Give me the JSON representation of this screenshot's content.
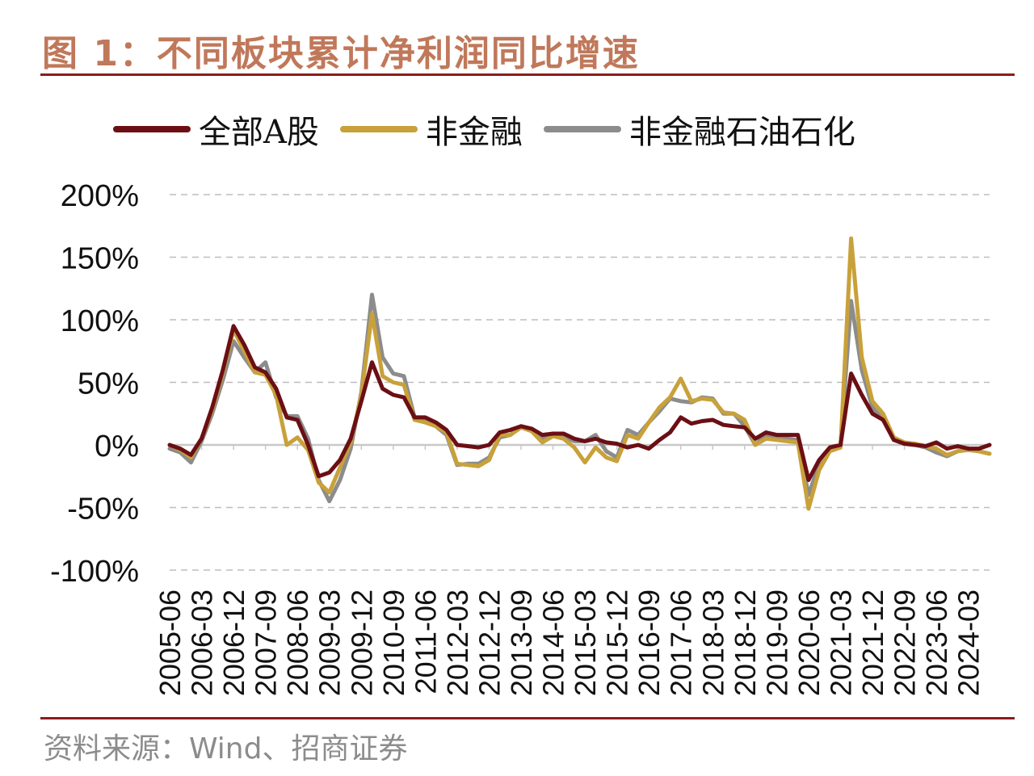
{
  "page": {
    "title": "图 1：不同板块累计净利润同比增速",
    "source": "资料来源：Wind、招商证券"
  },
  "chart_data": {
    "type": "line",
    "title": "图 1：不同板块累计净利润同比增速",
    "xlabel": "",
    "ylabel": "",
    "ylim": [
      -100,
      200
    ],
    "y_ticks": [
      "200%",
      "150%",
      "100%",
      "50%",
      "0%",
      "-50%",
      "-100%"
    ],
    "y_tick_values": [
      200,
      150,
      100,
      50,
      0,
      -50,
      -100
    ],
    "x_range": [
      "2005-06",
      "2024-09"
    ],
    "x_tick_labels": [
      "2005-06",
      "2006-03",
      "2006-12",
      "2007-09",
      "2008-06",
      "2009-03",
      "2009-12",
      "2010-09",
      "2011-06",
      "2012-03",
      "2012-12",
      "2013-09",
      "2014-06",
      "2015-03",
      "2015-12",
      "2016-09",
      "2017-06",
      "2018-03",
      "2018-12",
      "2019-09",
      "2020-06",
      "2021-03",
      "2021-12",
      "2022-09",
      "2023-06",
      "2024-03"
    ],
    "grid": "horizontal dashed",
    "legend_position": "top",
    "series": [
      {
        "name": "全部A股",
        "color": "#6b0f14",
        "points": [
          [
            "2005-06",
            0
          ],
          [
            "2005-09",
            -3
          ],
          [
            "2005-12",
            -8
          ],
          [
            "2006-03",
            5
          ],
          [
            "2006-06",
            30
          ],
          [
            "2006-09",
            60
          ],
          [
            "2006-12",
            95
          ],
          [
            "2007-03",
            80
          ],
          [
            "2007-06",
            62
          ],
          [
            "2007-09",
            58
          ],
          [
            "2007-12",
            45
          ],
          [
            "2008-03",
            22
          ],
          [
            "2008-06",
            20
          ],
          [
            "2008-09",
            0
          ],
          [
            "2008-12",
            -25
          ],
          [
            "2009-03",
            -22
          ],
          [
            "2009-06",
            -12
          ],
          [
            "2009-09",
            5
          ],
          [
            "2009-12",
            35
          ],
          [
            "2010-03",
            66
          ],
          [
            "2010-06",
            45
          ],
          [
            "2010-09",
            40
          ],
          [
            "2010-12",
            38
          ],
          [
            "2011-03",
            22
          ],
          [
            "2011-06",
            22
          ],
          [
            "2011-09",
            18
          ],
          [
            "2011-12",
            12
          ],
          [
            "2012-03",
            0
          ],
          [
            "2012-06",
            -1
          ],
          [
            "2012-09",
            -2
          ],
          [
            "2012-12",
            0
          ],
          [
            "2013-03",
            10
          ],
          [
            "2013-06",
            12
          ],
          [
            "2013-09",
            15
          ],
          [
            "2013-12",
            13
          ],
          [
            "2014-03",
            8
          ],
          [
            "2014-06",
            9
          ],
          [
            "2014-09",
            9
          ],
          [
            "2014-12",
            5
          ],
          [
            "2015-03",
            3
          ],
          [
            "2015-06",
            5
          ],
          [
            "2015-09",
            2
          ],
          [
            "2015-12",
            1
          ],
          [
            "2016-03",
            -2
          ],
          [
            "2016-06",
            0
          ],
          [
            "2016-09",
            -3
          ],
          [
            "2016-12",
            4
          ],
          [
            "2017-03",
            10
          ],
          [
            "2017-06",
            22
          ],
          [
            "2017-09",
            17
          ],
          [
            "2017-12",
            19
          ],
          [
            "2018-03",
            20
          ],
          [
            "2018-06",
            16
          ],
          [
            "2018-09",
            15
          ],
          [
            "2018-12",
            14
          ],
          [
            "2019-03",
            5
          ],
          [
            "2019-06",
            10
          ],
          [
            "2019-09",
            8
          ],
          [
            "2019-12",
            8
          ],
          [
            "2020-03",
            8
          ],
          [
            "2020-06",
            -28
          ],
          [
            "2020-09",
            -12
          ],
          [
            "2020-12",
            -2
          ],
          [
            "2021-03",
            0
          ],
          [
            "2021-06",
            57
          ],
          [
            "2021-09",
            40
          ],
          [
            "2021-12",
            25
          ],
          [
            "2022-03",
            20
          ],
          [
            "2022-06",
            4
          ],
          [
            "2022-09",
            1
          ],
          [
            "2022-12",
            0
          ],
          [
            "2023-03",
            -1
          ],
          [
            "2023-06",
            2
          ],
          [
            "2023-09",
            -3
          ],
          [
            "2023-12",
            -1
          ],
          [
            "2024-03",
            -3
          ],
          [
            "2024-06",
            -3
          ],
          [
            "2024-09",
            0
          ]
        ]
      },
      {
        "name": "非金融",
        "color": "#c8a13a",
        "points": [
          [
            "2005-06",
            0
          ],
          [
            "2005-09",
            -4
          ],
          [
            "2005-12",
            -10
          ],
          [
            "2006-03",
            5
          ],
          [
            "2006-06",
            28
          ],
          [
            "2006-09",
            58
          ],
          [
            "2006-12",
            92
          ],
          [
            "2007-03",
            75
          ],
          [
            "2007-06",
            58
          ],
          [
            "2007-09",
            56
          ],
          [
            "2007-12",
            40
          ],
          [
            "2008-03",
            0
          ],
          [
            "2008-06",
            6
          ],
          [
            "2008-09",
            -4
          ],
          [
            "2008-12",
            -30
          ],
          [
            "2009-03",
            -38
          ],
          [
            "2009-06",
            -18
          ],
          [
            "2009-09",
            2
          ],
          [
            "2009-12",
            40
          ],
          [
            "2010-03",
            105
          ],
          [
            "2010-06",
            55
          ],
          [
            "2010-09",
            50
          ],
          [
            "2010-12",
            48
          ],
          [
            "2011-03",
            20
          ],
          [
            "2011-06",
            18
          ],
          [
            "2011-09",
            15
          ],
          [
            "2011-12",
            10
          ],
          [
            "2012-03",
            -15
          ],
          [
            "2012-06",
            -16
          ],
          [
            "2012-09",
            -17
          ],
          [
            "2012-12",
            -12
          ],
          [
            "2013-03",
            8
          ],
          [
            "2013-06",
            8
          ],
          [
            "2013-09",
            14
          ],
          [
            "2013-12",
            11
          ],
          [
            "2014-03",
            2
          ],
          [
            "2014-06",
            7
          ],
          [
            "2014-09",
            5
          ],
          [
            "2014-12",
            -2
          ],
          [
            "2015-03",
            -14
          ],
          [
            "2015-06",
            -2
          ],
          [
            "2015-09",
            -10
          ],
          [
            "2015-12",
            -13
          ],
          [
            "2016-03",
            8
          ],
          [
            "2016-06",
            5
          ],
          [
            "2016-09",
            18
          ],
          [
            "2016-12",
            30
          ],
          [
            "2017-03",
            38
          ],
          [
            "2017-06",
            53
          ],
          [
            "2017-09",
            35
          ],
          [
            "2017-12",
            37
          ],
          [
            "2018-03",
            36
          ],
          [
            "2018-06",
            26
          ],
          [
            "2018-09",
            25
          ],
          [
            "2018-12",
            20
          ],
          [
            "2019-03",
            0
          ],
          [
            "2019-06",
            5
          ],
          [
            "2019-09",
            4
          ],
          [
            "2019-12",
            3
          ],
          [
            "2020-03",
            2
          ],
          [
            "2020-06",
            -51
          ],
          [
            "2020-09",
            -20
          ],
          [
            "2020-12",
            -5
          ],
          [
            "2021-03",
            -2
          ],
          [
            "2021-06",
            165
          ],
          [
            "2021-09",
            70
          ],
          [
            "2021-12",
            35
          ],
          [
            "2022-03",
            25
          ],
          [
            "2022-06",
            6
          ],
          [
            "2022-09",
            2
          ],
          [
            "2022-12",
            1
          ],
          [
            "2023-03",
            -1
          ],
          [
            "2023-06",
            -3
          ],
          [
            "2023-09",
            -8
          ],
          [
            "2023-12",
            -5
          ],
          [
            "2024-03",
            -4
          ],
          [
            "2024-06",
            -5
          ],
          [
            "2024-09",
            -7
          ]
        ]
      },
      {
        "name": "非金融石油石化",
        "color": "#8c8c8c",
        "points": [
          [
            "2005-06",
            -3
          ],
          [
            "2005-09",
            -6
          ],
          [
            "2005-12",
            -14
          ],
          [
            "2006-03",
            3
          ],
          [
            "2006-06",
            25
          ],
          [
            "2006-09",
            52
          ],
          [
            "2006-12",
            83
          ],
          [
            "2007-03",
            70
          ],
          [
            "2007-06",
            58
          ],
          [
            "2007-09",
            66
          ],
          [
            "2007-12",
            38
          ],
          [
            "2008-03",
            23
          ],
          [
            "2008-06",
            23
          ],
          [
            "2008-09",
            5
          ],
          [
            "2008-12",
            -28
          ],
          [
            "2009-03",
            -45
          ],
          [
            "2009-06",
            -28
          ],
          [
            "2009-09",
            -3
          ],
          [
            "2009-12",
            42
          ],
          [
            "2010-03",
            120
          ],
          [
            "2010-06",
            70
          ],
          [
            "2010-09",
            57
          ],
          [
            "2010-12",
            55
          ],
          [
            "2011-03",
            22
          ],
          [
            "2011-06",
            20
          ],
          [
            "2011-09",
            15
          ],
          [
            "2011-12",
            8
          ],
          [
            "2012-03",
            -16
          ],
          [
            "2012-06",
            -15
          ],
          [
            "2012-09",
            -15
          ],
          [
            "2012-12",
            -10
          ],
          [
            "2013-03",
            6
          ],
          [
            "2013-06",
            8
          ],
          [
            "2013-09",
            15
          ],
          [
            "2013-12",
            12
          ],
          [
            "2014-03",
            5
          ],
          [
            "2014-06",
            8
          ],
          [
            "2014-09",
            7
          ],
          [
            "2014-12",
            3
          ],
          [
            "2015-03",
            3
          ],
          [
            "2015-06",
            8
          ],
          [
            "2015-09",
            -5
          ],
          [
            "2015-12",
            -10
          ],
          [
            "2016-03",
            12
          ],
          [
            "2016-06",
            8
          ],
          [
            "2016-09",
            18
          ],
          [
            "2016-12",
            27
          ],
          [
            "2017-03",
            37
          ],
          [
            "2017-06",
            35
          ],
          [
            "2017-09",
            34
          ],
          [
            "2017-12",
            38
          ],
          [
            "2018-03",
            37
          ],
          [
            "2018-06",
            25
          ],
          [
            "2018-09",
            25
          ],
          [
            "2018-12",
            15
          ],
          [
            "2019-03",
            0
          ],
          [
            "2019-06",
            8
          ],
          [
            "2019-09",
            6
          ],
          [
            "2019-12",
            5
          ],
          [
            "2020-03",
            4
          ],
          [
            "2020-06",
            -40
          ],
          [
            "2020-09",
            -15
          ],
          [
            "2020-12",
            -4
          ],
          [
            "2021-03",
            0
          ],
          [
            "2021-06",
            115
          ],
          [
            "2021-09",
            60
          ],
          [
            "2021-12",
            30
          ],
          [
            "2022-03",
            20
          ],
          [
            "2022-06",
            5
          ],
          [
            "2022-09",
            1
          ],
          [
            "2022-12",
            0
          ],
          [
            "2023-03",
            -2
          ],
          [
            "2023-06",
            -6
          ],
          [
            "2023-09",
            -9
          ],
          [
            "2023-12",
            -5
          ],
          [
            "2024-03",
            -4
          ],
          [
            "2024-06",
            -5
          ],
          [
            "2024-09",
            -7
          ]
        ]
      }
    ]
  }
}
